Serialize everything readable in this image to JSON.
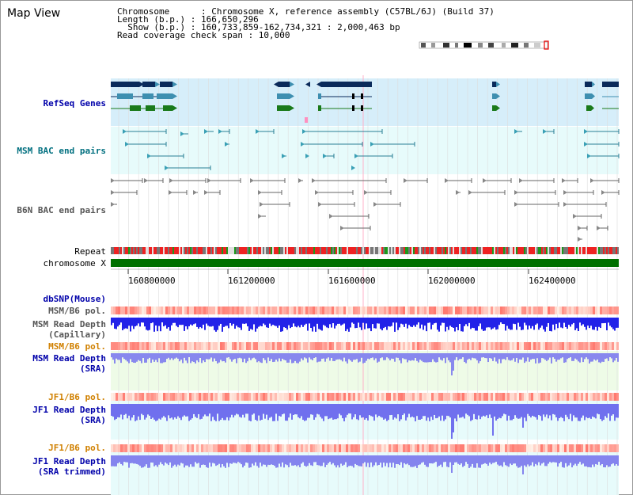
{
  "window": {
    "title": "Map View"
  },
  "header": {
    "chromosome_line": "Chromosome      : Chromosome X, reference assembly (C57BL/6J) (Build 37)",
    "length_line": "Length (b.p.) : 166,650,296",
    "show_line": "  Show (b.p.) : 160,733,859-162,734,321 : 2,000,463 bp",
    "coverage_line": "Read coverage check span : 10,000"
  },
  "tracks": {
    "refseq": "RefSeq Genes",
    "msm_bac": "MSM BAC end pairs",
    "b6n_bac": "B6N BAC end pairs",
    "repeat": "Repeat",
    "chromosome": "chromosome X",
    "dbsnp": "dbSNP(Mouse)",
    "msm_b6_pol": "MSM/B6 pol.",
    "msm_depth_cap_1": "MSM Read Depth",
    "msm_depth_cap_2": "(Capillary)",
    "msm_b6_pol2": "MSM/B6 pol.",
    "msm_depth_sra_1": "MSM Read Depth",
    "msm_depth_sra_2": "(SRA)",
    "jf1_b6_pol": "JF1/B6 pol.",
    "jf1_depth_1": "JF1 Read Depth",
    "jf1_depth_2": "(SRA)",
    "jf1_b6_pol2": "JF1/B6 pol.",
    "jf1_trim_1": "JF1 Read Depth",
    "jf1_trim_2": "(SRA trimmed)"
  },
  "axis": {
    "ticks": [
      "160800000",
      "161200000",
      "161600000",
      "162000000",
      "162400000"
    ]
  },
  "colors": {
    "refseq_bg": "#d6eefa",
    "bac_bg": "#e7fbfb",
    "navy": "#0a2a5a",
    "teal": "#3e8fb0",
    "green": "#1a7a1a",
    "chrom": "#007000",
    "repeat_red": "#ee2222",
    "depth_blue": "#2a2aee"
  }
}
